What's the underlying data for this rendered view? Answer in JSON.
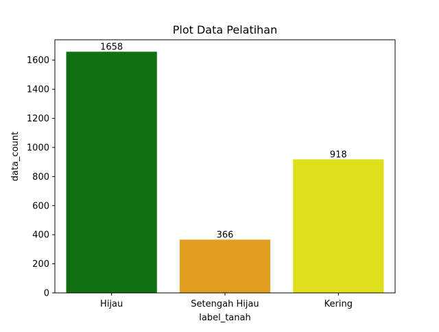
{
  "chart_data": {
    "type": "bar",
    "title": "Plot Data Pelatihan",
    "xlabel": "label_tanah",
    "ylabel": "data_count",
    "categories": [
      "Hijau",
      "Setengah Hijau",
      "Kering"
    ],
    "values": [
      1658,
      366,
      918
    ],
    "data_labels": [
      "1658",
      "366",
      "918"
    ],
    "colors": [
      "#117011",
      "#e19e20",
      "#e0df1c"
    ],
    "ylim": [
      0,
      1740
    ],
    "yticks": [
      0,
      200,
      400,
      600,
      800,
      1000,
      1200,
      1400,
      1600
    ],
    "grid": false,
    "legend": "none"
  }
}
